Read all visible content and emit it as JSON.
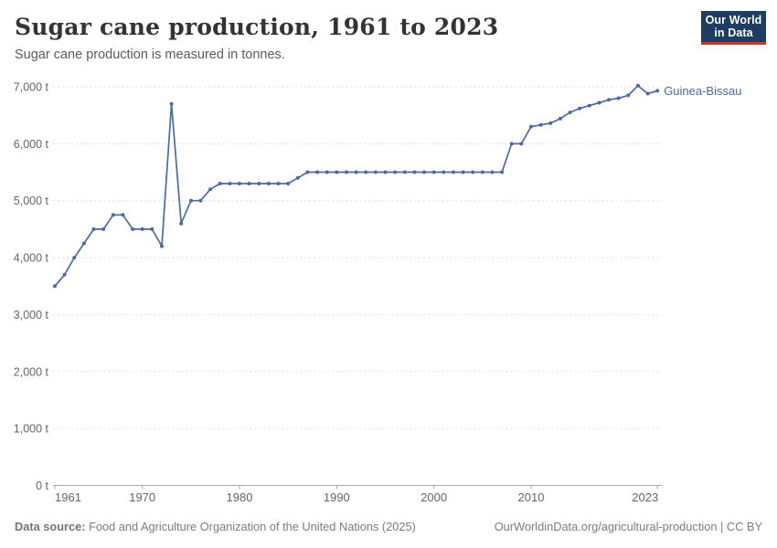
{
  "header": {
    "title": "Sugar cane production, 1961 to 2023",
    "subtitle": "Sugar cane production is measured in tonnes."
  },
  "logo": {
    "line1": "Our World",
    "line2": "in Data"
  },
  "colors": {
    "line": "#4a6ba3",
    "entity_label": "#4a6ba3",
    "grid": "#dddddd",
    "axis": "#a8a8a8",
    "tick_text": "#666666",
    "logo_bg": "#1d3d63",
    "logo_accent": "#cd3731"
  },
  "chart_data": {
    "type": "line",
    "title": "Sugar cane production, 1961 to 2023",
    "subtitle": "Sugar cane production is measured in tonnes.",
    "unit": "t",
    "entity": "Guinea-Bissau",
    "grid": true,
    "legend_position": "line-end",
    "ylim": [
      0,
      7000
    ],
    "yticks": [
      0,
      1000,
      2000,
      3000,
      4000,
      5000,
      6000,
      7000
    ],
    "ytick_labels": [
      "0 t",
      "1,000 t",
      "2,000 t",
      "3,000 t",
      "4,000 t",
      "5,000 t",
      "6,000 t",
      "7,000 t"
    ],
    "xticks": [
      1961,
      1970,
      1980,
      1990,
      2000,
      2010,
      2023
    ],
    "x": [
      1961,
      1962,
      1963,
      1964,
      1965,
      1966,
      1967,
      1968,
      1969,
      1970,
      1971,
      1972,
      1973,
      1974,
      1975,
      1976,
      1977,
      1978,
      1979,
      1980,
      1981,
      1982,
      1983,
      1984,
      1985,
      1986,
      1987,
      1988,
      1989,
      1990,
      1991,
      1992,
      1993,
      1994,
      1995,
      1996,
      1997,
      1998,
      1999,
      2000,
      2001,
      2002,
      2003,
      2004,
      2005,
      2006,
      2007,
      2008,
      2009,
      2010,
      2011,
      2012,
      2013,
      2014,
      2015,
      2016,
      2017,
      2018,
      2019,
      2020,
      2021,
      2022,
      2023
    ],
    "series": [
      {
        "name": "Guinea-Bissau",
        "values": [
          3500,
          3700,
          4000,
          4250,
          4500,
          4500,
          4750,
          4750,
          4500,
          4500,
          4500,
          4200,
          6700,
          4600,
          5000,
          5000,
          5200,
          5300,
          5300,
          5300,
          5300,
          5300,
          5300,
          5300,
          5300,
          5400,
          5500,
          5500,
          5500,
          5500,
          5500,
          5500,
          5500,
          5500,
          5500,
          5500,
          5500,
          5500,
          5500,
          5500,
          5500,
          5500,
          5500,
          5500,
          5500,
          5500,
          5500,
          6000,
          6000,
          6300,
          6330,
          6360,
          6440,
          6550,
          6620,
          6670,
          6720,
          6770,
          6800,
          6850,
          7020,
          6880,
          6930
        ]
      }
    ]
  },
  "footer": {
    "datasource_label": "Data source:",
    "datasource_text": " Food and Agriculture Organization of the United Nations (2025)",
    "link_text": "OurWorldinData.org/agricultural-production | CC BY"
  }
}
